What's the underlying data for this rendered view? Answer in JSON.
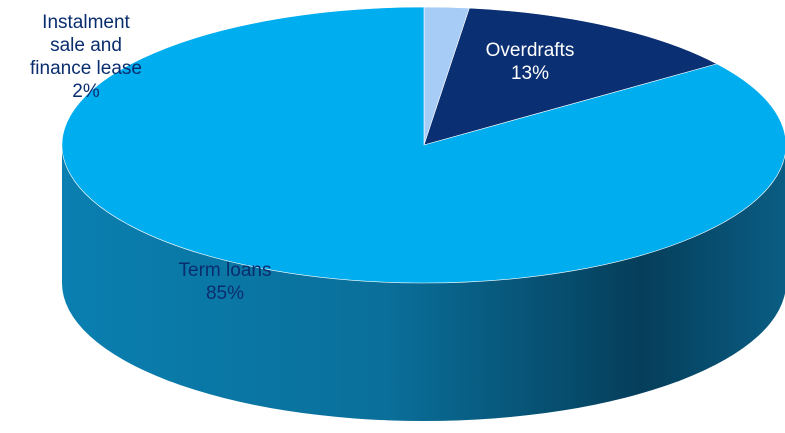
{
  "chart_data": {
    "type": "pie",
    "style": "3d-tilted",
    "start": "12 o'clock",
    "direction": "clockwise",
    "slices": [
      {
        "name": "Instalment sale and finance lease",
        "label_lines": [
          "Instalment",
          "sale and",
          "finance lease",
          "2%"
        ],
        "value": 2,
        "color": "#a7cdf6",
        "side_color": "#7aa6d8",
        "label_color": "#0a2d6e"
      },
      {
        "name": "Overdrafts",
        "label_lines": [
          "Overdrafts",
          "13%"
        ],
        "value": 13,
        "color": "#0b2f73",
        "side_color": "#06204f",
        "label_color": "#ffffff"
      },
      {
        "name": "Term loans",
        "label_lines": [
          "Term loans",
          "85%"
        ],
        "value": 85,
        "color": "#00adef",
        "side_color": "#0a6f96",
        "label_color": "#0a2d6e"
      }
    ]
  }
}
